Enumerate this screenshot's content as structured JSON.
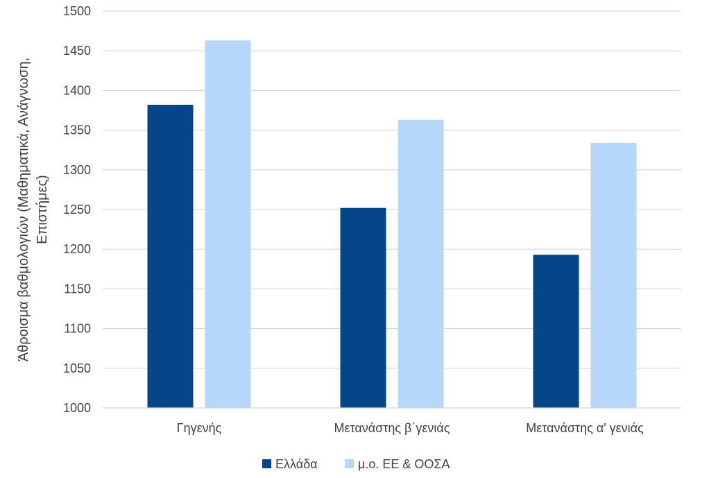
{
  "chart_data": {
    "type": "bar",
    "title": "",
    "xlabel": "",
    "ylabel_lines": [
      "Άθροισμα βαθμολογιών (Μαθηματικά, Ανάγνωση,",
      "Επιστήμες)"
    ],
    "ylim": [
      1000,
      1500
    ],
    "yticks": [
      1000,
      1050,
      1100,
      1150,
      1200,
      1250,
      1300,
      1350,
      1400,
      1450,
      1500
    ],
    "grid": true,
    "legend_position": "bottom",
    "categories": [
      "Γηγενής",
      "Μετανάστης β΄γενιάς",
      "Μετανάστης α' γενιάς"
    ],
    "series": [
      {
        "name": "Ελλάδα",
        "color": "#05468A",
        "values": [
          1382,
          1252,
          1193
        ]
      },
      {
        "name": "μ.ο. ΕΕ & ΟΟΣΑ",
        "color": "#B6D7FA",
        "values": [
          1463,
          1363,
          1334
        ]
      }
    ]
  }
}
